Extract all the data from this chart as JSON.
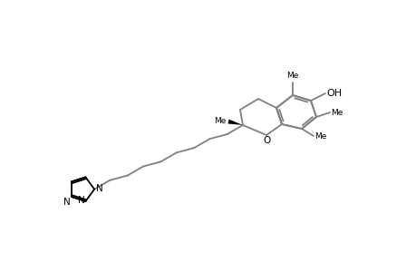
{
  "bg_color": "#ffffff",
  "line_color": "#808080",
  "bond_color": "#808080",
  "text_color": "#000000",
  "wedge_color": "#000000",
  "bond_lw": 1.3,
  "figsize": [
    4.6,
    3.0
  ],
  "dpi": 100,
  "xlim": [
    0,
    460
  ],
  "ylim": [
    0,
    300
  ]
}
